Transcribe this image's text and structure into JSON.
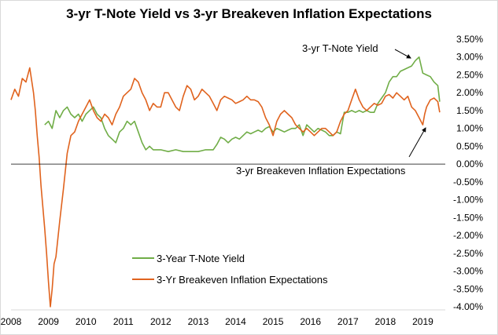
{
  "chart_data": {
    "type": "line",
    "title": "3-yr T-Note Yield vs 3-yr Breakeven Inflation Expectations",
    "xlabel": "",
    "ylabel": "",
    "xlim": [
      2008,
      2019.6
    ],
    "ylim": [
      -4.0,
      3.5
    ],
    "x_ticks": [
      "2008",
      "2009",
      "2010",
      "2011",
      "2012",
      "2013",
      "2014",
      "2015",
      "2016",
      "2017",
      "2018",
      "2019"
    ],
    "y_ticks": [
      "3.50%",
      "3.00%",
      "2.50%",
      "2.00%",
      "1.50%",
      "1.00%",
      "0.50%",
      "0.00%",
      "-0.50%",
      "-1.00%",
      "-1.50%",
      "-2.00%",
      "-2.50%",
      "-3.00%",
      "-3.50%",
      "-4.00%"
    ],
    "y_tick_values": [
      3.5,
      3.0,
      2.5,
      2.0,
      1.5,
      1.0,
      0.5,
      0.0,
      -0.5,
      -1.0,
      -1.5,
      -2.0,
      -2.5,
      -3.0,
      -3.5,
      -4.0
    ],
    "grid": false,
    "legend_position": "bottom-left",
    "series": [
      {
        "name": "3-Year T-Note Yield",
        "color": "#70ad47",
        "x": [
          2008.9,
          2009.0,
          2009.1,
          2009.2,
          2009.3,
          2009.4,
          2009.5,
          2009.6,
          2009.7,
          2009.8,
          2009.9,
          2010.0,
          2010.1,
          2010.2,
          2010.3,
          2010.4,
          2010.5,
          2010.6,
          2010.7,
          2010.8,
          2010.9,
          2011.0,
          2011.1,
          2011.2,
          2011.3,
          2011.4,
          2011.5,
          2011.6,
          2011.7,
          2011.8,
          2011.9,
          2012.0,
          2012.2,
          2012.4,
          2012.6,
          2012.8,
          2013.0,
          2013.2,
          2013.4,
          2013.5,
          2013.6,
          2013.7,
          2013.8,
          2013.9,
          2014.0,
          2014.1,
          2014.2,
          2014.3,
          2014.4,
          2014.5,
          2014.6,
          2014.7,
          2014.8,
          2014.9,
          2015.0,
          2015.1,
          2015.2,
          2015.3,
          2015.4,
          2015.5,
          2015.6,
          2015.7,
          2015.8,
          2015.9,
          2016.0,
          2016.1,
          2016.2,
          2016.3,
          2016.4,
          2016.5,
          2016.6,
          2016.7,
          2016.8,
          2016.9,
          2017.0,
          2017.1,
          2017.2,
          2017.3,
          2017.4,
          2017.5,
          2017.6,
          2017.7,
          2017.8,
          2017.9,
          2018.0,
          2018.1,
          2018.2,
          2018.3,
          2018.4,
          2018.5,
          2018.6,
          2018.7,
          2018.8,
          2018.85,
          2018.9,
          2019.0,
          2019.1,
          2019.2,
          2019.3,
          2019.4,
          2019.45
        ],
        "values": [
          1.1,
          1.2,
          1.0,
          1.5,
          1.3,
          1.5,
          1.6,
          1.4,
          1.3,
          1.4,
          1.2,
          1.4,
          1.5,
          1.6,
          1.4,
          1.3,
          1.0,
          0.8,
          0.7,
          0.6,
          0.9,
          1.0,
          1.2,
          1.1,
          1.2,
          0.9,
          0.6,
          0.4,
          0.5,
          0.4,
          0.4,
          0.4,
          0.35,
          0.4,
          0.35,
          0.35,
          0.35,
          0.4,
          0.4,
          0.55,
          0.75,
          0.7,
          0.6,
          0.7,
          0.75,
          0.7,
          0.8,
          0.9,
          0.85,
          0.9,
          0.95,
          0.9,
          1.0,
          1.05,
          0.9,
          1.0,
          0.95,
          0.9,
          0.95,
          1.0,
          1.0,
          1.1,
          0.8,
          1.1,
          1.0,
          0.9,
          1.0,
          0.95,
          0.9,
          0.8,
          0.8,
          0.9,
          0.85,
          1.45,
          1.45,
          1.5,
          1.45,
          1.5,
          1.45,
          1.5,
          1.45,
          1.45,
          1.7,
          1.85,
          2.0,
          2.3,
          2.45,
          2.45,
          2.6,
          2.65,
          2.7,
          2.75,
          2.9,
          2.95,
          3.0,
          2.55,
          2.5,
          2.45,
          2.3,
          2.2,
          1.75
        ]
      },
      {
        "name": "3-Yr Breakeven Inflation Expectations",
        "color": "#e0631e",
        "x": [
          2008.0,
          2008.1,
          2008.2,
          2008.3,
          2008.4,
          2008.5,
          2008.6,
          2008.65,
          2008.7,
          2008.75,
          2008.8,
          2008.9,
          2008.95,
          2009.0,
          2009.05,
          2009.1,
          2009.15,
          2009.2,
          2009.3,
          2009.4,
          2009.5,
          2009.6,
          2009.7,
          2009.8,
          2009.9,
          2010.0,
          2010.1,
          2010.2,
          2010.3,
          2010.4,
          2010.5,
          2010.6,
          2010.7,
          2010.8,
          2010.9,
          2011.0,
          2011.1,
          2011.2,
          2011.3,
          2011.4,
          2011.5,
          2011.6,
          2011.7,
          2011.8,
          2011.9,
          2012.0,
          2012.1,
          2012.2,
          2012.3,
          2012.4,
          2012.5,
          2012.6,
          2012.7,
          2012.8,
          2012.9,
          2013.0,
          2013.1,
          2013.2,
          2013.3,
          2013.4,
          2013.5,
          2013.6,
          2013.7,
          2013.8,
          2013.9,
          2014.0,
          2014.1,
          2014.2,
          2014.3,
          2014.4,
          2014.5,
          2014.6,
          2014.7,
          2014.8,
          2014.9,
          2015.0,
          2015.1,
          2015.2,
          2015.3,
          2015.4,
          2015.5,
          2015.6,
          2015.7,
          2015.8,
          2015.9,
          2016.0,
          2016.1,
          2016.2,
          2016.3,
          2016.4,
          2016.5,
          2016.6,
          2016.7,
          2016.8,
          2016.9,
          2017.0,
          2017.1,
          2017.2,
          2017.3,
          2017.4,
          2017.5,
          2017.6,
          2017.7,
          2017.8,
          2017.9,
          2018.0,
          2018.1,
          2018.2,
          2018.3,
          2018.4,
          2018.5,
          2018.6,
          2018.7,
          2018.8,
          2018.9,
          2019.0,
          2019.05,
          2019.1,
          2019.2,
          2019.3,
          2019.4,
          2019.45
        ],
        "values": [
          1.8,
          2.1,
          1.9,
          2.4,
          2.3,
          2.7,
          2.0,
          1.5,
          0.8,
          0.2,
          -0.6,
          -1.8,
          -2.5,
          -3.3,
          -4.0,
          -3.5,
          -2.8,
          -2.6,
          -1.6,
          -0.7,
          0.3,
          0.8,
          0.9,
          1.2,
          1.4,
          1.6,
          1.8,
          1.5,
          1.3,
          1.2,
          1.4,
          1.3,
          1.1,
          1.4,
          1.6,
          1.9,
          2.0,
          2.1,
          2.4,
          2.3,
          2.0,
          1.8,
          1.5,
          1.7,
          1.6,
          1.6,
          2.0,
          2.0,
          1.8,
          1.6,
          1.5,
          1.9,
          2.2,
          2.1,
          1.8,
          1.9,
          2.1,
          2.0,
          1.9,
          1.7,
          1.5,
          1.8,
          1.9,
          1.85,
          1.8,
          1.7,
          1.75,
          1.8,
          1.9,
          1.8,
          1.8,
          1.75,
          1.6,
          1.3,
          1.1,
          0.8,
          1.2,
          1.4,
          1.5,
          1.4,
          1.3,
          1.1,
          1.0,
          0.9,
          1.0,
          0.9,
          0.8,
          0.9,
          1.0,
          1.0,
          0.9,
          0.8,
          0.9,
          1.2,
          1.4,
          1.5,
          1.8,
          2.1,
          1.8,
          1.6,
          1.5,
          1.6,
          1.7,
          1.65,
          1.7,
          1.9,
          1.95,
          1.85,
          2.0,
          1.9,
          1.8,
          1.9,
          1.6,
          1.5,
          1.3,
          1.1,
          1.4,
          1.6,
          1.8,
          1.85,
          1.75,
          1.45
        ]
      }
    ],
    "annotations": [
      {
        "text": "3-yr T-Note Yield",
        "series": 0,
        "target": [
          2018.9,
          2.95
        ]
      },
      {
        "text": "3-yr Breakeven Inflation Expectations",
        "series": 1,
        "target": [
          2018.95,
          0.95
        ]
      }
    ]
  }
}
